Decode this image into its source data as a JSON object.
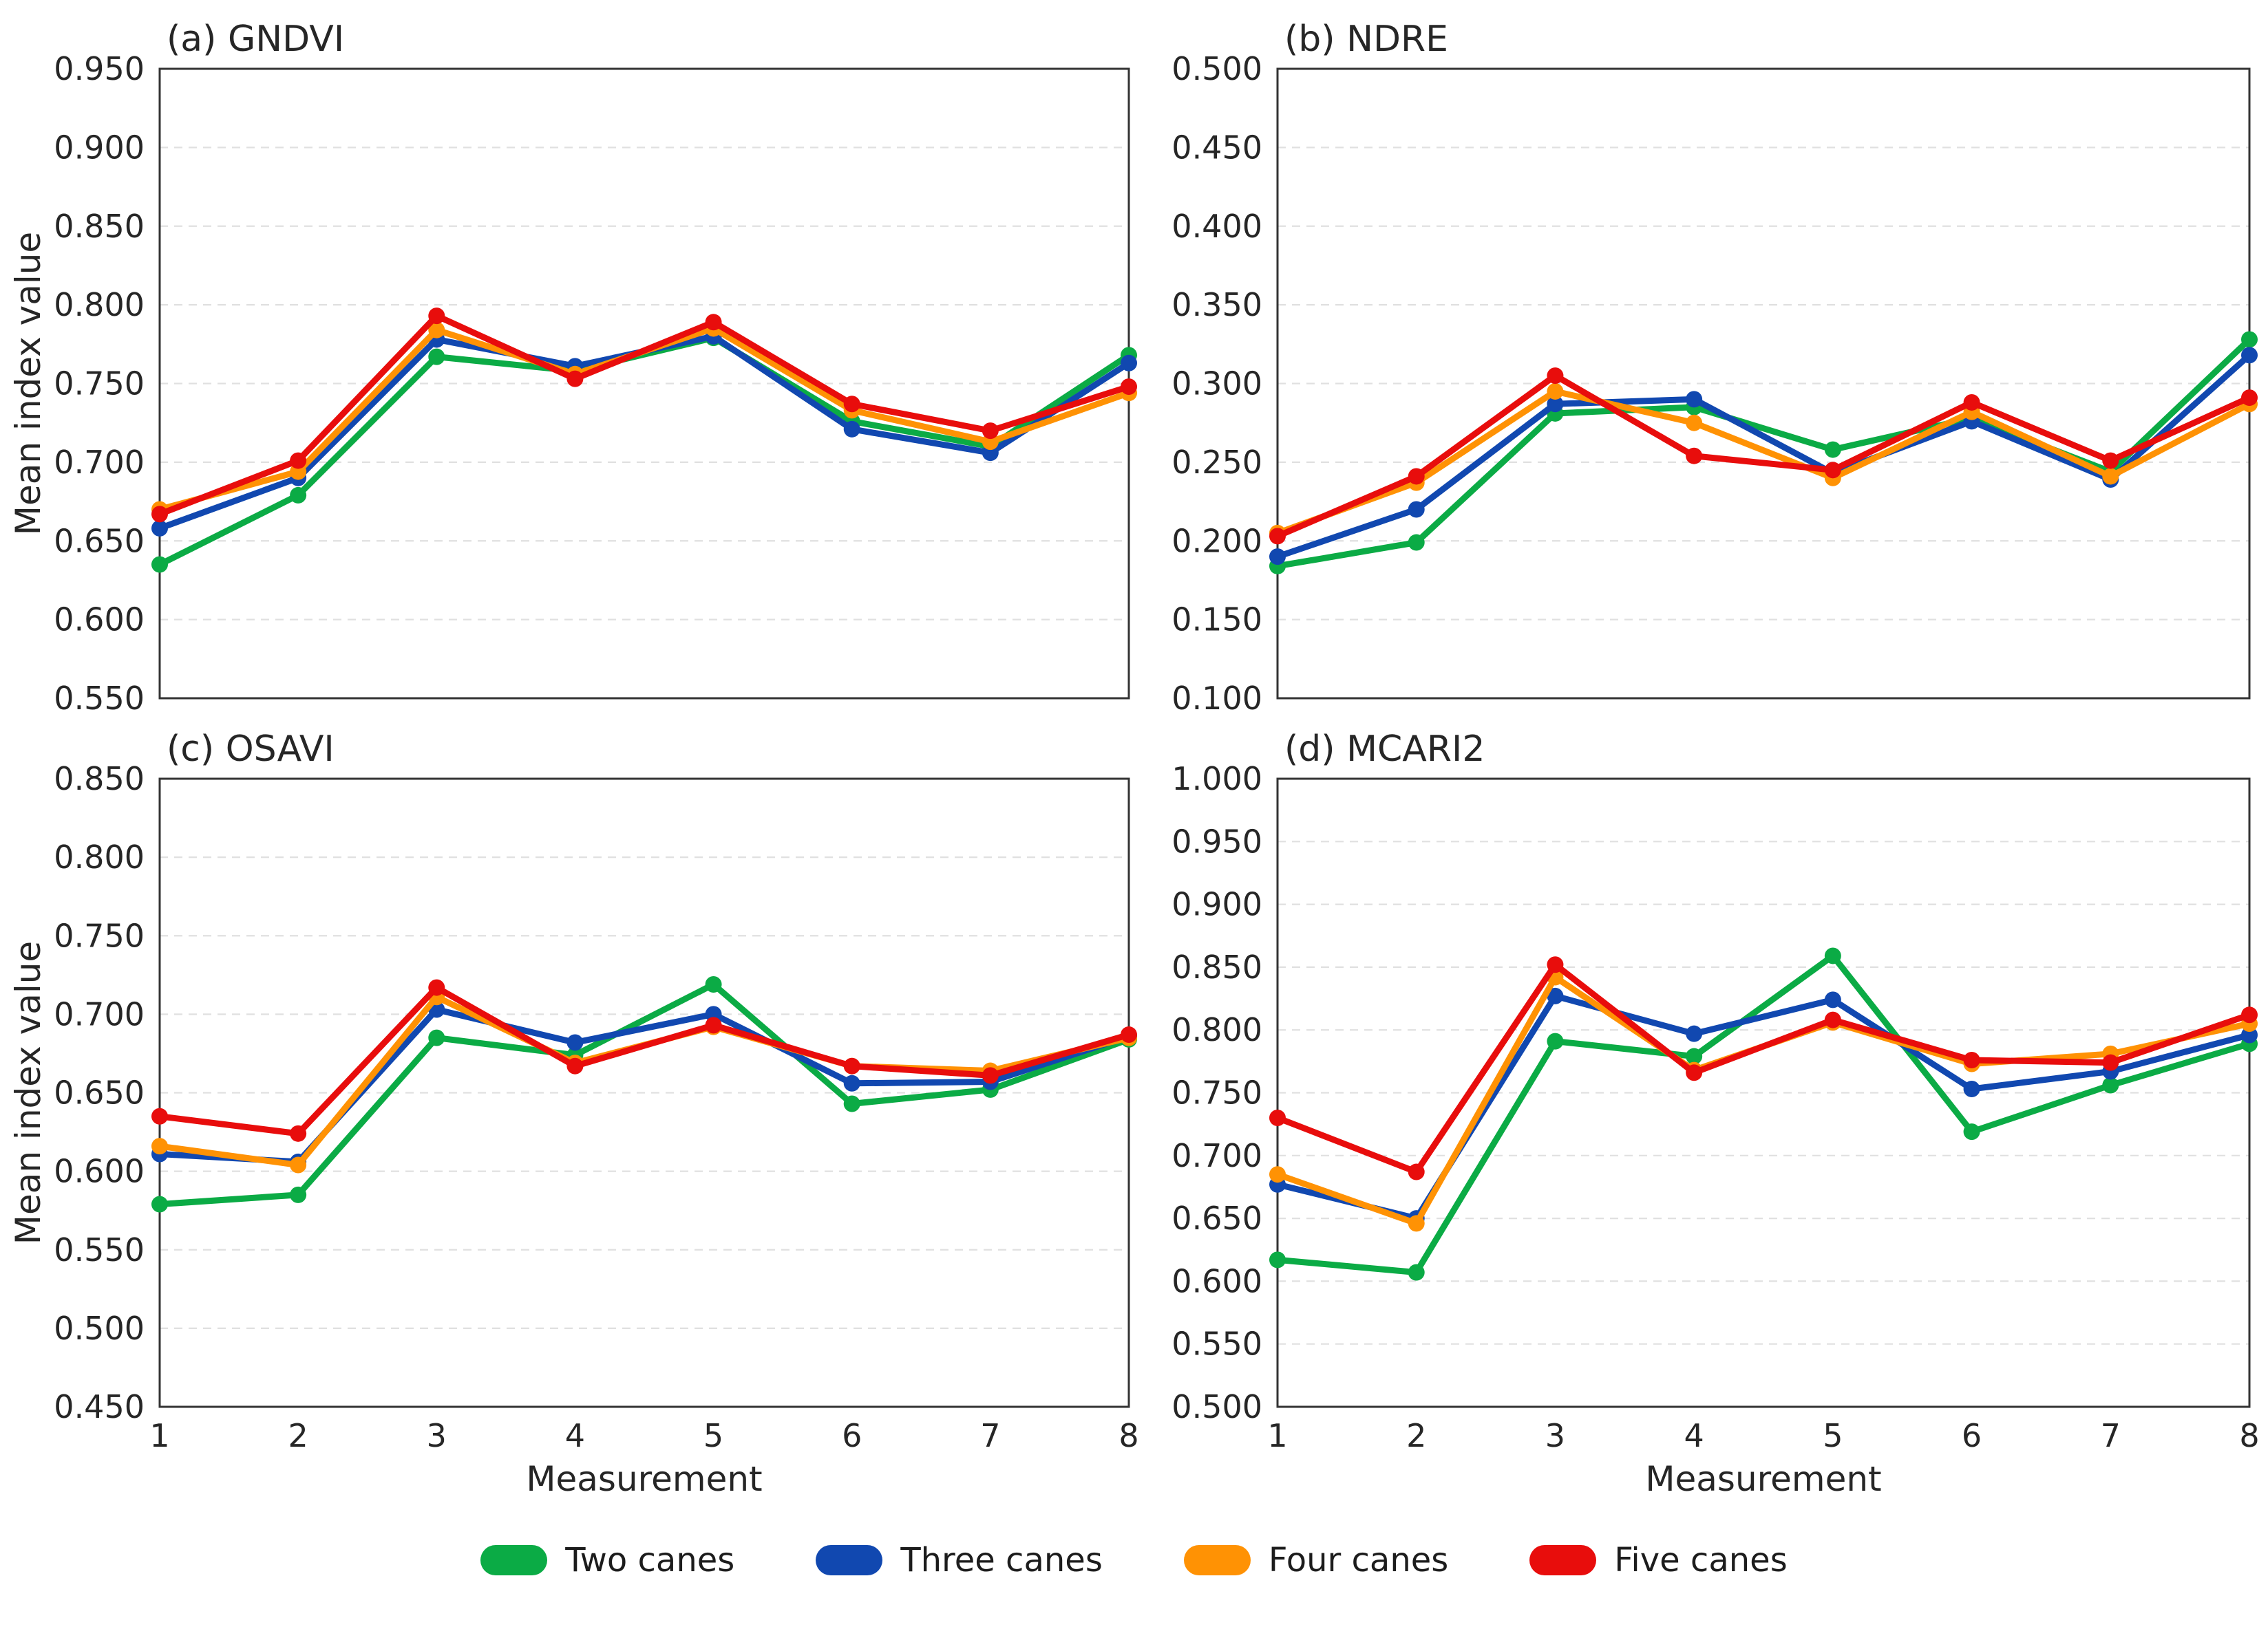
{
  "figure": {
    "background": "#ffffff",
    "shared_ylabel": "Mean index value",
    "shared_xlabel": "Measurement"
  },
  "colors": {
    "two_canes": "#0BAB45",
    "three_canes": "#1148B0",
    "four_canes": "#FF9204",
    "five_canes": "#E80D0C",
    "grid": "#e0e0e0",
    "axis_border": "#333333",
    "text": "#262626"
  },
  "legend": {
    "position": "bottom-center",
    "items": [
      {
        "label": "Two canes",
        "color": "#0BAB45"
      },
      {
        "label": "Three canes",
        "color": "#1148B0"
      },
      {
        "label": "Four canes",
        "color": "#FF9204"
      },
      {
        "label": "Five canes",
        "color": "#E80D0C"
      }
    ]
  },
  "chart_data": [
    {
      "type": "line",
      "panel": "a",
      "title": "(a) GNDVI",
      "x": [
        1,
        2,
        3,
        4,
        5,
        6,
        7,
        8
      ],
      "xlabel": "Measurement",
      "ylabel": "Mean index value",
      "ylim": [
        0.55,
        0.95
      ],
      "ytick_step": 0.05,
      "grid": true,
      "show_xtick_labels": false,
      "show_xlabel": false,
      "show_ylabel": true,
      "series": [
        {
          "name": "Two canes",
          "color": "#0BAB45",
          "values": [
            0.635,
            0.679,
            0.767,
            0.758,
            0.779,
            0.726,
            0.71,
            0.768
          ]
        },
        {
          "name": "Three canes",
          "color": "#1148B0",
          "values": [
            0.658,
            0.69,
            0.778,
            0.761,
            0.78,
            0.721,
            0.706,
            0.763
          ]
        },
        {
          "name": "Four canes",
          "color": "#FF9204",
          "values": [
            0.67,
            0.694,
            0.784,
            0.756,
            0.785,
            0.733,
            0.713,
            0.744
          ]
        },
        {
          "name": "Five canes",
          "color": "#E80D0C",
          "values": [
            0.667,
            0.701,
            0.793,
            0.753,
            0.789,
            0.737,
            0.72,
            0.748
          ]
        }
      ]
    },
    {
      "type": "line",
      "panel": "b",
      "title": "(b) NDRE",
      "x": [
        1,
        2,
        3,
        4,
        5,
        6,
        7,
        8
      ],
      "xlabel": "Measurement",
      "ylabel": "Mean index value",
      "ylim": [
        0.1,
        0.5
      ],
      "ytick_step": 0.05,
      "grid": true,
      "show_xtick_labels": false,
      "show_xlabel": false,
      "show_ylabel": false,
      "series": [
        {
          "name": "Two canes",
          "color": "#0BAB45",
          "values": [
            0.184,
            0.199,
            0.281,
            0.285,
            0.258,
            0.278,
            0.244,
            0.328
          ]
        },
        {
          "name": "Three canes",
          "color": "#1148B0",
          "values": [
            0.19,
            0.22,
            0.287,
            0.29,
            0.243,
            0.276,
            0.239,
            0.318
          ]
        },
        {
          "name": "Four canes",
          "color": "#FF9204",
          "values": [
            0.205,
            0.237,
            0.295,
            0.275,
            0.24,
            0.282,
            0.241,
            0.287
          ]
        },
        {
          "name": "Five canes",
          "color": "#E80D0C",
          "values": [
            0.203,
            0.241,
            0.305,
            0.254,
            0.245,
            0.288,
            0.251,
            0.291
          ]
        }
      ]
    },
    {
      "type": "line",
      "panel": "c",
      "title": "(c) OSAVI",
      "x": [
        1,
        2,
        3,
        4,
        5,
        6,
        7,
        8
      ],
      "xlabel": "Measurement",
      "ylabel": "Mean index value",
      "ylim": [
        0.45,
        0.85
      ],
      "ytick_step": 0.05,
      "grid": true,
      "show_xtick_labels": true,
      "show_xlabel": true,
      "show_ylabel": true,
      "series": [
        {
          "name": "Two canes",
          "color": "#0BAB45",
          "values": [
            0.579,
            0.585,
            0.685,
            0.674,
            0.719,
            0.643,
            0.652,
            0.684
          ]
        },
        {
          "name": "Three canes",
          "color": "#1148B0",
          "values": [
            0.611,
            0.606,
            0.703,
            0.682,
            0.7,
            0.656,
            0.657,
            0.686
          ]
        },
        {
          "name": "Four canes",
          "color": "#FF9204",
          "values": [
            0.616,
            0.604,
            0.711,
            0.669,
            0.692,
            0.667,
            0.664,
            0.685
          ]
        },
        {
          "name": "Five canes",
          "color": "#E80D0C",
          "values": [
            0.635,
            0.624,
            0.717,
            0.667,
            0.693,
            0.667,
            0.661,
            0.687
          ]
        }
      ]
    },
    {
      "type": "line",
      "panel": "d",
      "title": "(d) MCARI2",
      "x": [
        1,
        2,
        3,
        4,
        5,
        6,
        7,
        8
      ],
      "xlabel": "Measurement",
      "ylabel": "Mean index value",
      "ylim": [
        0.5,
        1.0
      ],
      "ytick_step": 0.05,
      "grid": true,
      "show_xtick_labels": true,
      "show_xlabel": true,
      "show_ylabel": false,
      "series": [
        {
          "name": "Two canes",
          "color": "#0BAB45",
          "values": [
            0.617,
            0.607,
            0.791,
            0.779,
            0.859,
            0.719,
            0.756,
            0.789
          ]
        },
        {
          "name": "Three canes",
          "color": "#1148B0",
          "values": [
            0.677,
            0.65,
            0.827,
            0.797,
            0.824,
            0.753,
            0.767,
            0.796
          ]
        },
        {
          "name": "Four canes",
          "color": "#FF9204",
          "values": [
            0.685,
            0.646,
            0.842,
            0.768,
            0.806,
            0.773,
            0.781,
            0.805
          ]
        },
        {
          "name": "Five canes",
          "color": "#E80D0C",
          "values": [
            0.73,
            0.687,
            0.852,
            0.766,
            0.808,
            0.776,
            0.774,
            0.812
          ]
        }
      ]
    }
  ]
}
